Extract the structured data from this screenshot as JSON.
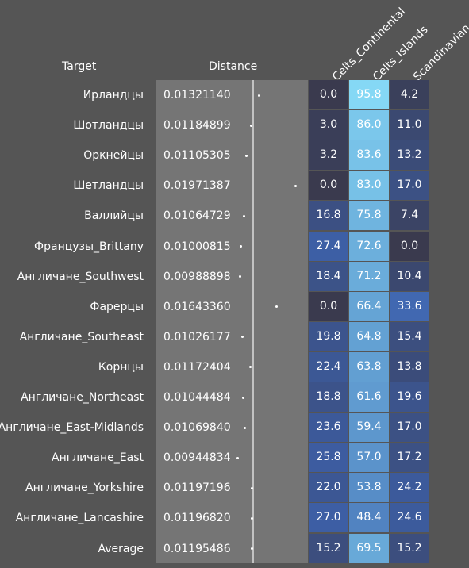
{
  "headers": {
    "target": "Target",
    "distance": "Distance",
    "columns": [
      "Celts_Continental",
      "Celts_Islands",
      "Scandinavian"
    ]
  },
  "chart_data": {
    "type": "table",
    "columns": [
      "Target",
      "Distance",
      "Celts_Continental",
      "Celts_Islands",
      "Scandinavian"
    ],
    "rows": [
      {
        "target": "Ирландцы",
        "distance": "0.01321140",
        "values": [
          "0.0",
          "95.8",
          "4.2"
        ]
      },
      {
        "target": "Шотландцы",
        "distance": "0.01184899",
        "values": [
          "3.0",
          "86.0",
          "11.0"
        ]
      },
      {
        "target": "Оркнейцы",
        "distance": "0.01105305",
        "values": [
          "3.2",
          "83.6",
          "13.2"
        ]
      },
      {
        "target": "Шетландцы",
        "distance": "0.01971387",
        "values": [
          "0.0",
          "83.0",
          "17.0"
        ]
      },
      {
        "target": "Валлийцы",
        "distance": "0.01064729",
        "values": [
          "16.8",
          "75.8",
          "7.4"
        ]
      },
      {
        "target": "Французы_Brittany",
        "distance": "0.01000815",
        "values": [
          "27.4",
          "72.6",
          "0.0"
        ]
      },
      {
        "target": "Англичане_Southwest",
        "distance": "0.00988898",
        "values": [
          "18.4",
          "71.2",
          "10.4"
        ]
      },
      {
        "target": "Фарерцы",
        "distance": "0.01643360",
        "values": [
          "0.0",
          "66.4",
          "33.6"
        ]
      },
      {
        "target": "Англичане_Southeast",
        "distance": "0.01026177",
        "values": [
          "19.8",
          "64.8",
          "15.4"
        ]
      },
      {
        "target": "Корнцы",
        "distance": "0.01172404",
        "values": [
          "22.4",
          "63.8",
          "13.8"
        ]
      },
      {
        "target": "Англичане_Northeast",
        "distance": "0.01044484",
        "values": [
          "18.8",
          "61.6",
          "19.6"
        ]
      },
      {
        "target": "Англичане_East-Midlands",
        "distance": "0.01069840",
        "values": [
          "23.6",
          "59.4",
          "17.0"
        ]
      },
      {
        "target": "Англичане_East",
        "distance": "0.00944834",
        "values": [
          "25.8",
          "57.0",
          "17.2"
        ]
      },
      {
        "target": "Англичане_Yorkshire",
        "distance": "0.01197196",
        "values": [
          "22.0",
          "53.8",
          "24.2"
        ]
      },
      {
        "target": "Англичане_Lancashire",
        "distance": "0.01196820",
        "values": [
          "27.0",
          "48.4",
          "24.6"
        ]
      },
      {
        "target": "Average",
        "distance": "0.01195486",
        "values": [
          "15.2",
          "69.5",
          "15.2"
        ]
      }
    ],
    "colors": {
      "background": "#555555",
      "distance_panel": "#757575",
      "average_line": "#c2c2c2",
      "cell_low": "#3a3a4e",
      "cell_mid": "#3d62ad",
      "cell_high": "#8ae0fa"
    }
  }
}
